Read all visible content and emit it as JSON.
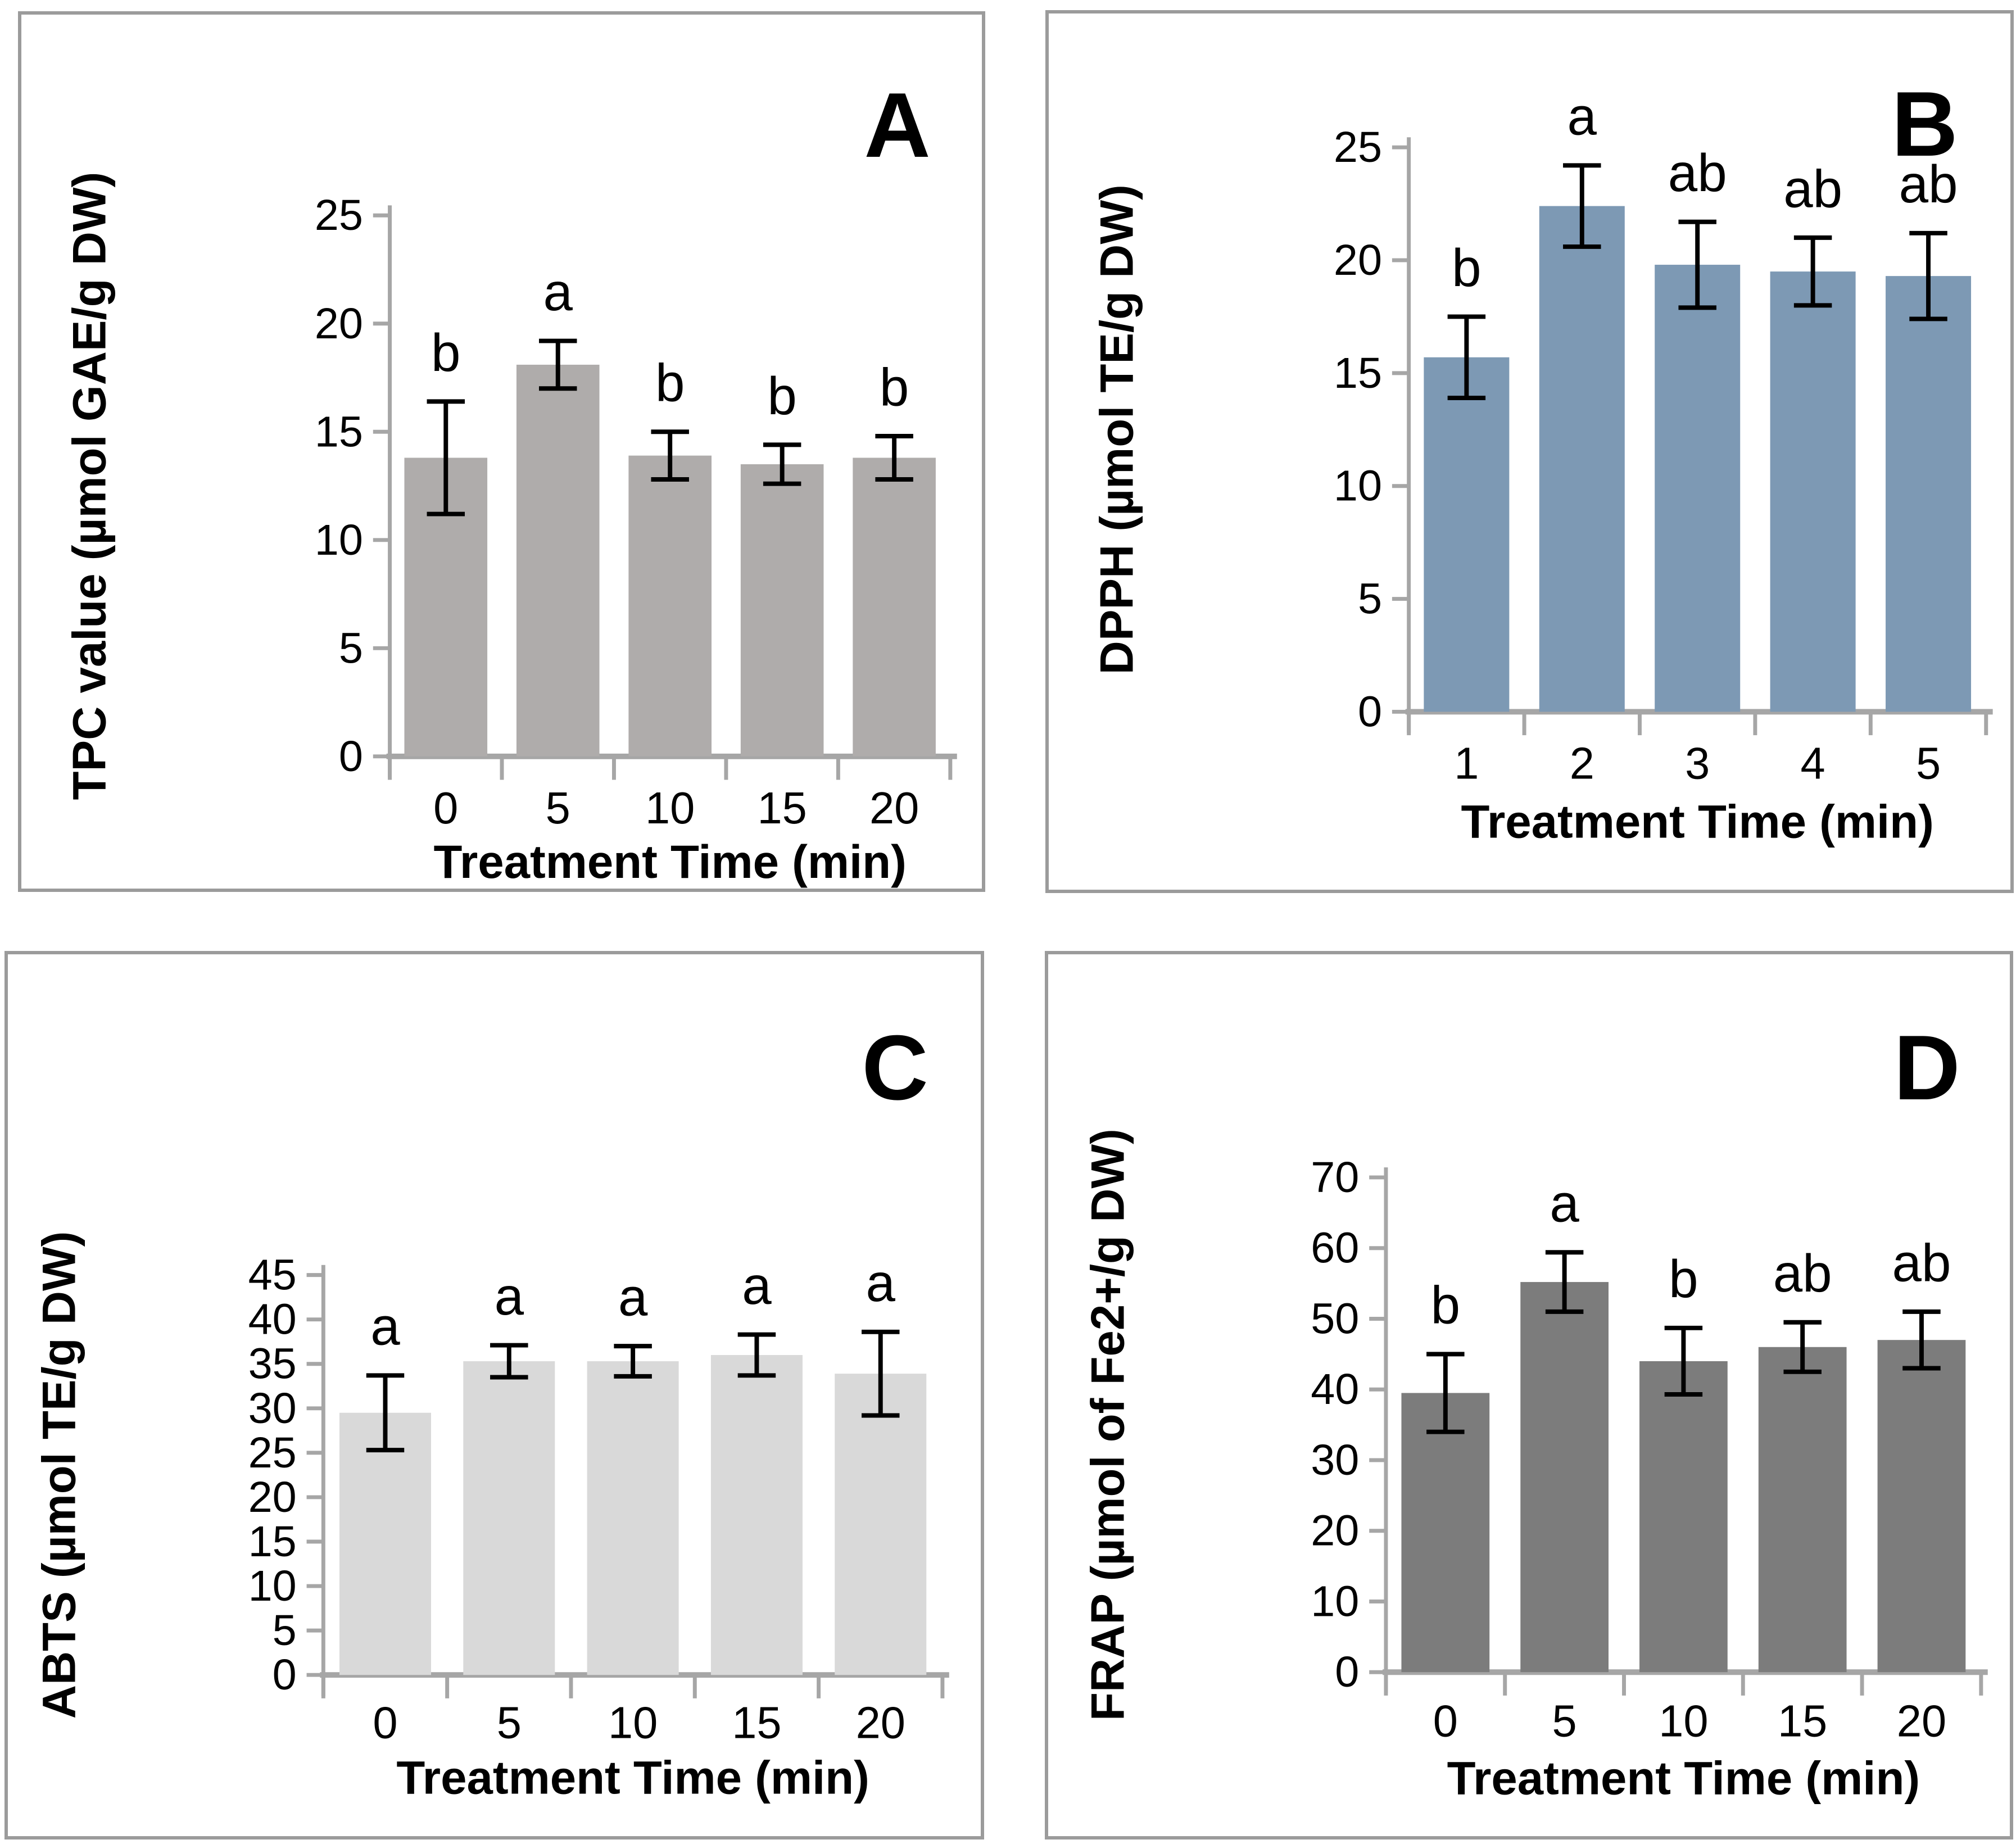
{
  "figure": {
    "description": "Four-panel bar chart figure (A, B, C, D) of antioxidant measurements vs treatment time",
    "panels_order": [
      "A",
      "B",
      "C",
      "D"
    ]
  },
  "chart_data": [
    {
      "id": "A",
      "type": "bar",
      "panel_label": "A",
      "title": "",
      "ylabel": "TPC value (µmol GAE/g DW)",
      "xlabel": "Treatment Time (min)",
      "categories": [
        "0",
        "5",
        "10",
        "15",
        "20"
      ],
      "values": [
        13.8,
        18.1,
        13.9,
        13.5,
        13.8
      ],
      "errors": [
        2.6,
        1.1,
        1.1,
        0.9,
        1.0
      ],
      "sig_letters": [
        "b",
        "a",
        "b",
        "b",
        "b"
      ],
      "ylim": [
        0,
        25
      ],
      "ytick_step": 5,
      "grid": "off",
      "legend": "none",
      "bar_color": "#afacab"
    },
    {
      "id": "B",
      "type": "bar",
      "panel_label": "B",
      "title": "",
      "ylabel": "DPPH (µmol TE/g DW)",
      "xlabel": "Treatment Time (min)",
      "categories": [
        "1",
        "2",
        "3",
        "4",
        "5"
      ],
      "values": [
        15.7,
        22.4,
        19.8,
        19.5,
        19.3
      ],
      "errors": [
        1.8,
        1.8,
        1.9,
        1.5,
        1.9
      ],
      "sig_letters": [
        "b",
        "a",
        "ab",
        "ab",
        "ab"
      ],
      "ylim": [
        0,
        25
      ],
      "ytick_step": 5,
      "grid": "off",
      "legend": "none",
      "bar_color": "#7d99b4"
    },
    {
      "id": "C",
      "type": "bar",
      "panel_label": "C",
      "title": "",
      "ylabel": "ABTS (µmol TE/g DW)",
      "xlabel": "Treatment Time (min)",
      "categories": [
        "0",
        "5",
        "10",
        "15",
        "20"
      ],
      "values": [
        29.5,
        35.3,
        35.3,
        36.0,
        33.9
      ],
      "errors": [
        4.2,
        1.8,
        1.7,
        2.3,
        4.7
      ],
      "sig_letters": [
        "a",
        "a",
        "a",
        "a",
        "a"
      ],
      "ylim": [
        0,
        45
      ],
      "ytick_step": 5,
      "grid": "off",
      "legend": "none",
      "bar_color": "#d9d9d9"
    },
    {
      "id": "D",
      "type": "bar",
      "panel_label": "D",
      "title": "",
      "ylabel": "FRAP (µmol of Fe2+/g DW)",
      "xlabel": "Treatment Time (min)",
      "categories": [
        "0",
        "5",
        "10",
        "15",
        "20"
      ],
      "values": [
        39.5,
        55.2,
        44.0,
        46.0,
        47.0
      ],
      "errors": [
        5.5,
        4.2,
        4.7,
        3.5,
        4.0
      ],
      "sig_letters": [
        "b",
        "a",
        "b",
        "ab",
        "ab"
      ],
      "ylim": [
        0,
        70
      ],
      "ytick_step": 10,
      "grid": "off",
      "legend": "none",
      "bar_color": "#7c7c7c"
    }
  ],
  "style_tokens": {
    "axis_color": "#a6a6a6",
    "error_bar_color": "#000000",
    "panel_border_color": "#9b9b9b",
    "text_color": "#000000"
  }
}
